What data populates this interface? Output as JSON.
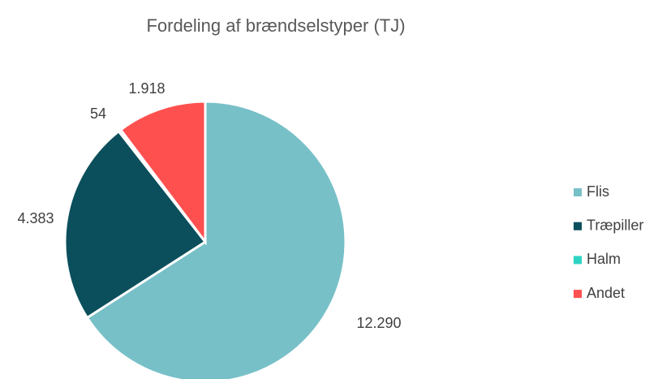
{
  "chart_data": {
    "type": "pie",
    "title": "Fordeling af brændselstyper  (TJ)",
    "categories": [
      "Flis",
      "Træpiller",
      "Halm",
      "Andet"
    ],
    "values": [
      12290,
      4383,
      54,
      1918
    ],
    "value_labels": [
      "12.290",
      "4.383",
      "54",
      "1.918"
    ],
    "colors": [
      "#78c0c8",
      "#0b4f5c",
      "#2dd4c4",
      "#ff5050"
    ],
    "legend": "right"
  }
}
